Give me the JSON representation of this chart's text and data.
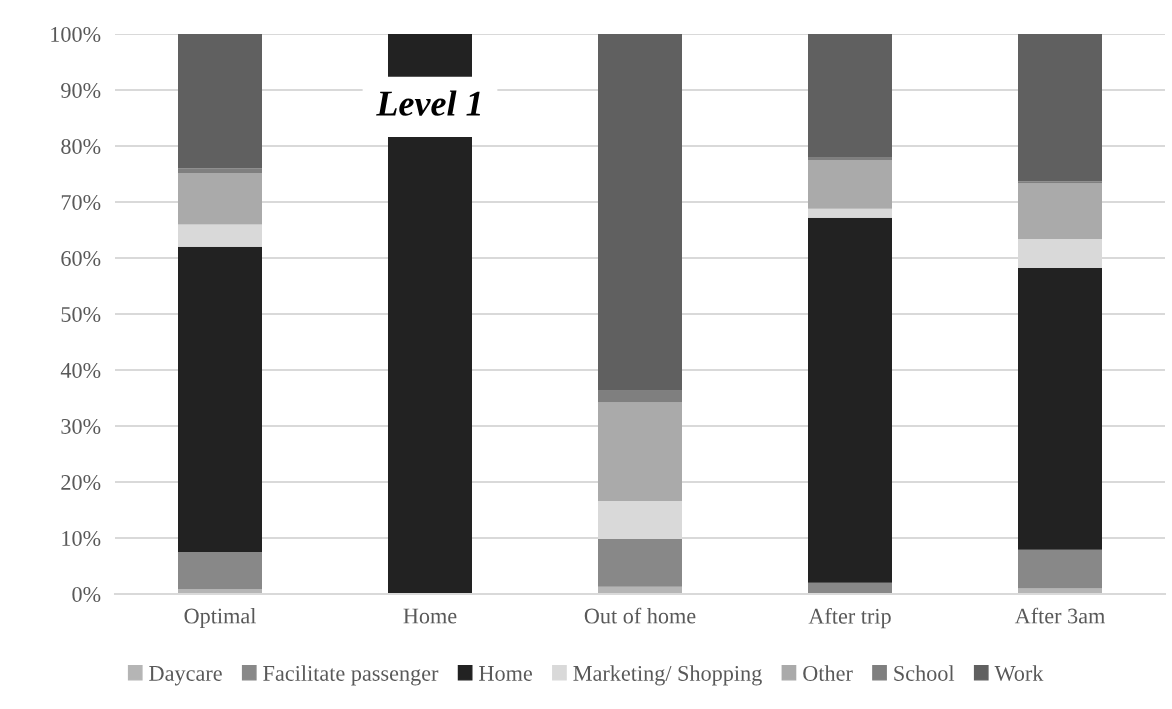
{
  "chart_data": {
    "type": "bar",
    "stacked": true,
    "categories": [
      "Optimal",
      "Home",
      "Out of home",
      "After trip",
      "After 3am"
    ],
    "series": [
      {
        "name": "Daycare",
        "color": "#b5b5b5",
        "values": [
          0.9,
          0,
          1.3,
          0,
          1.0
        ]
      },
      {
        "name": "Facilitate passenger",
        "color": "#888888",
        "values": [
          6.6,
          0,
          8.5,
          2.0,
          6.9
        ]
      },
      {
        "name": "Home",
        "color": "#222222",
        "values": [
          54.5,
          100,
          0,
          65.2,
          50.3
        ]
      },
      {
        "name": "Marketing/ Shopping",
        "color": "#d9d9d9",
        "values": [
          4.0,
          0,
          6.8,
          1.6,
          5.2
        ]
      },
      {
        "name": "Other",
        "color": "#aaaaaa",
        "values": [
          9.2,
          0,
          17.6,
          8.7,
          9.9
        ]
      },
      {
        "name": "School",
        "color": "#7f7f7f",
        "values": [
          0.8,
          0,
          2.1,
          0.4,
          0.4
        ]
      },
      {
        "name": "Work",
        "color": "#606060",
        "values": [
          24.0,
          0,
          63.7,
          22.1,
          26.3
        ]
      }
    ],
    "ylim": [
      0,
      100
    ],
    "yticks": [
      {
        "value": 0,
        "label": "0%"
      },
      {
        "value": 10,
        "label": "10%"
      },
      {
        "value": 20,
        "label": "20%"
      },
      {
        "value": 30,
        "label": "30%"
      },
      {
        "value": 40,
        "label": "40%"
      },
      {
        "value": 50,
        "label": "50%"
      },
      {
        "value": 60,
        "label": "60%"
      },
      {
        "value": 70,
        "label": "70%"
      },
      {
        "value": 80,
        "label": "80%"
      },
      {
        "value": 90,
        "label": "90%"
      },
      {
        "value": 100,
        "label": "100%"
      }
    ],
    "grid": "y",
    "legend": "bottom",
    "annotations": [
      "Level 1"
    ]
  }
}
